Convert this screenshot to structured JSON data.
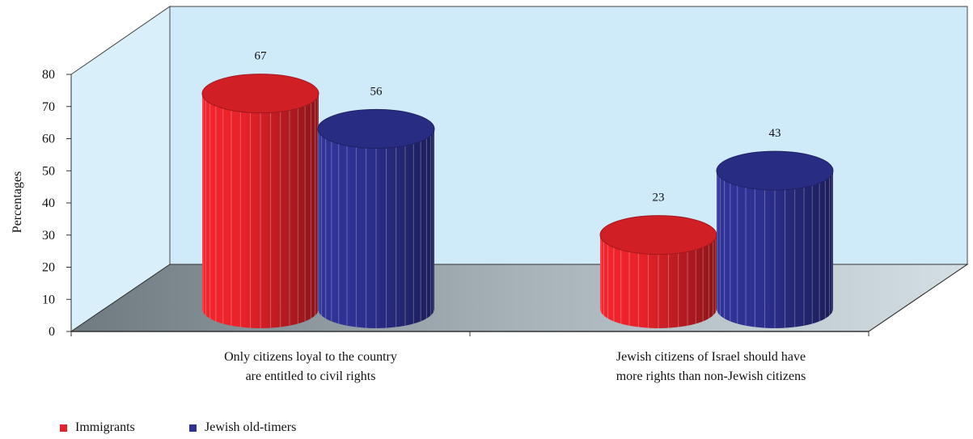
{
  "chart_data": {
    "type": "bar",
    "ylabel": "Percentages",
    "ylim": [
      0,
      80
    ],
    "yticks": [
      "0",
      "10",
      "20",
      "30",
      "40",
      "50",
      "60",
      "70",
      "80"
    ],
    "categories": [
      "Only citizens loyal to the country\nare entitled to civil rights",
      "Jewish citizens of Israel should have\nmore rights than non-Jewish citizens"
    ],
    "series": [
      {
        "name": "Immigrants",
        "values": [
          67,
          23
        ],
        "color": "#e8222a"
      },
      {
        "name": "Jewish old-timers",
        "values": [
          56,
          43
        ],
        "color": "#2e3192"
      }
    ],
    "style": "3d-cylinder",
    "legend_position": "bottom-left"
  }
}
